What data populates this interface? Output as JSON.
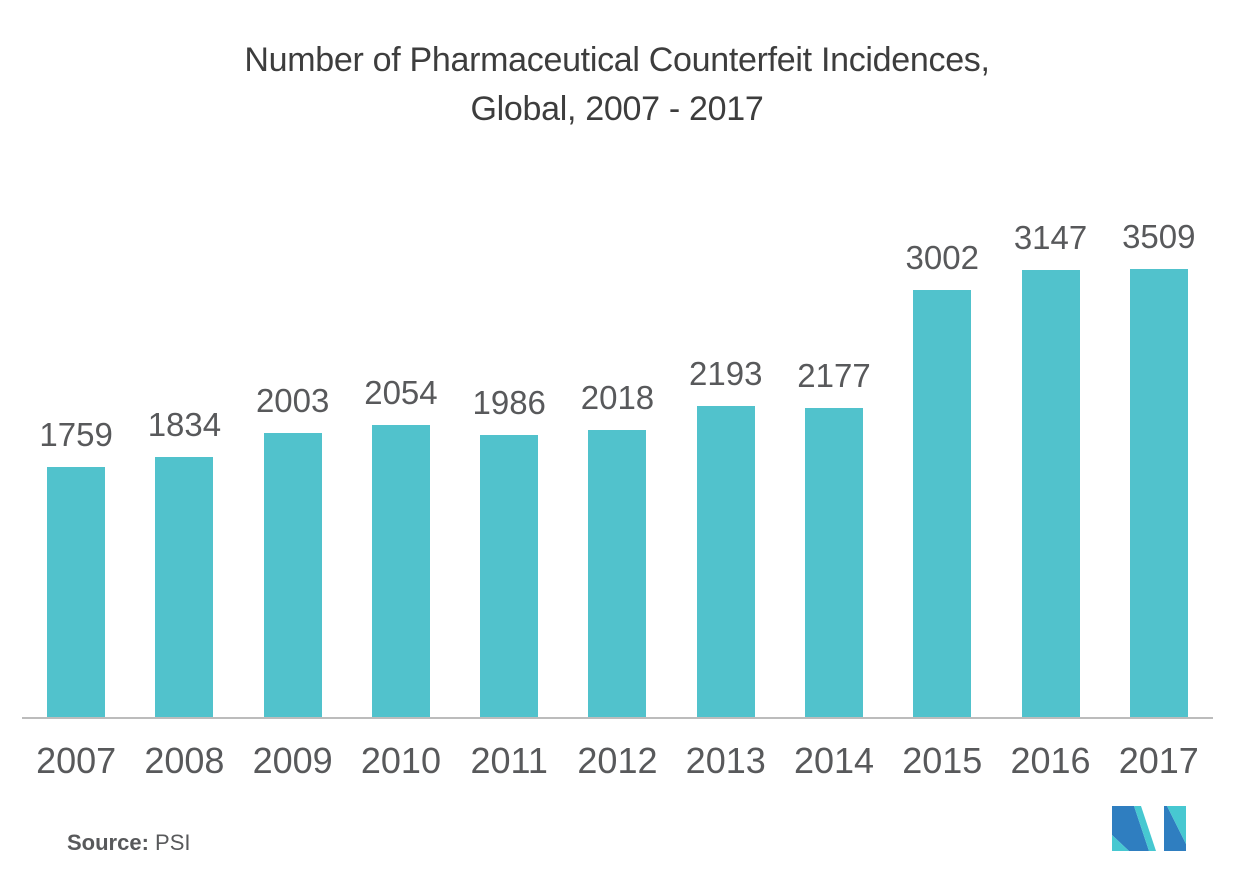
{
  "chart_data": {
    "type": "bar",
    "title": "Number of Pharmaceutical Counterfeit Incidences, Global, 2007 - 2017",
    "title_lines": [
      "Number of Pharmaceutical Counterfeit Incidences,",
      "Global, 2007 - 2017"
    ],
    "categories": [
      "2007",
      "2008",
      "2009",
      "2010",
      "2011",
      "2012",
      "2013",
      "2014",
      "2015",
      "2016",
      "2017"
    ],
    "values": [
      1759,
      1834,
      2003,
      2054,
      1986,
      2018,
      2193,
      2177,
      3002,
      3147,
      3509
    ],
    "xlabel": "",
    "ylabel": "",
    "ylim": [
      0,
      3509
    ],
    "gridlines": false,
    "legend": "none",
    "value_labels": "above-bars",
    "yaxis_shown": false
  },
  "source": {
    "label": "Source:",
    "value": "PSI"
  },
  "logo": {
    "name": "mordor-intelligence-logo"
  },
  "colors": {
    "background": "#FFFFFF",
    "bar": "#51C2CC",
    "title_text": "#3D3D3D",
    "label_text": "#58595B",
    "axis_line": "#BCBCBC",
    "logo_blue": "#2F7EC0",
    "logo_teal": "#47C8D1"
  }
}
